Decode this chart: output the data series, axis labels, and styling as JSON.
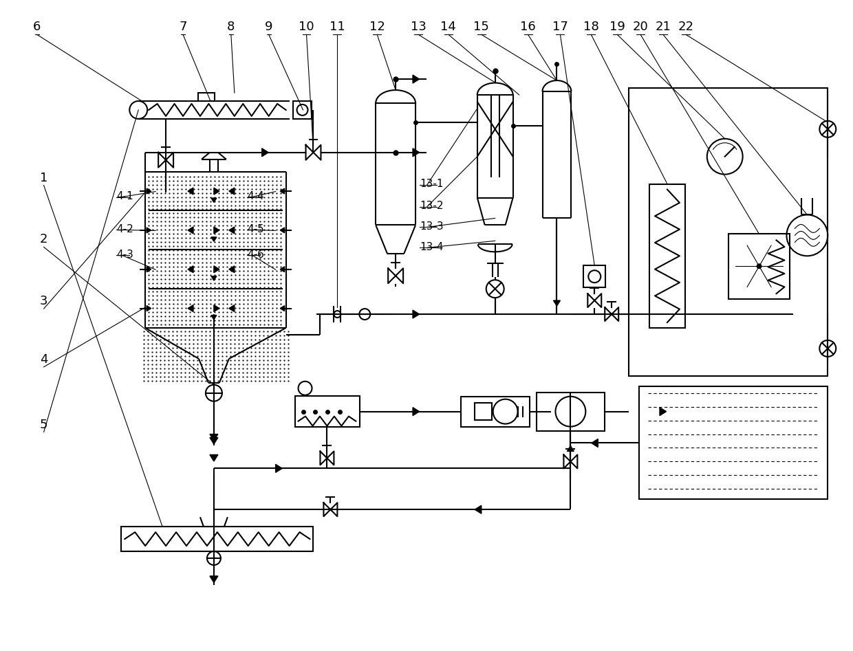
{
  "bg_color": "#ffffff",
  "line_color": "#000000",
  "lw": 1.5,
  "lw_thin": 0.8,
  "label_fs": 13,
  "sublabel_fs": 11
}
